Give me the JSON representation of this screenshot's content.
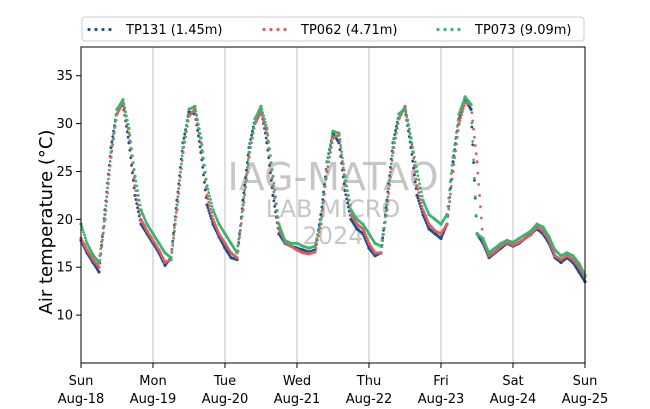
{
  "chart_data": {
    "type": "scatter",
    "ylabel": "Air temperature (°C)",
    "ylim": [
      5,
      38
    ],
    "xlim": [
      "2024-08-18 00:00",
      "2024-08-25 00:00"
    ],
    "yticks": [
      10,
      15,
      20,
      25,
      30,
      35
    ],
    "xticks": [
      {
        "x": "2024-08-18",
        "day": "Sun",
        "date": "Aug-18"
      },
      {
        "x": "2024-08-19",
        "day": "Mon",
        "date": "Aug-19"
      },
      {
        "x": "2024-08-20",
        "day": "Tue",
        "date": "Aug-20"
      },
      {
        "x": "2024-08-21",
        "day": "Wed",
        "date": "Aug-21"
      },
      {
        "x": "2024-08-22",
        "day": "Thu",
        "date": "Aug-22"
      },
      {
        "x": "2024-08-23",
        "day": "Fri",
        "date": "Aug-23"
      },
      {
        "x": "2024-08-24",
        "day": "Sat",
        "date": "Aug-24"
      },
      {
        "x": "2024-08-25",
        "day": "Sun",
        "date": "Aug-25"
      }
    ],
    "grid": "vertical gridlines at day ticks",
    "legend_position": "top, above plot",
    "watermark": [
      "IAG-MATAO",
      "LAB MICRO",
      "2024"
    ],
    "series": [
      {
        "name": "TP131 (1.45m)",
        "color": "#1f4e8c",
        "x": [
          "2024-08-18 00:00",
          "2024-08-18 02:00",
          "2024-08-18 04:00",
          "2024-08-18 06:00",
          "2024-08-18 08:00",
          "2024-08-18 10:00",
          "2024-08-18 12:00",
          "2024-08-18 14:00",
          "2024-08-18 16:00",
          "2024-08-18 18:00",
          "2024-08-18 20:00",
          "2024-08-18 22:00",
          "2024-08-19 00:00",
          "2024-08-19 02:00",
          "2024-08-19 04:00",
          "2024-08-19 06:00",
          "2024-08-19 08:00",
          "2024-08-19 10:00",
          "2024-08-19 12:00",
          "2024-08-19 14:00",
          "2024-08-19 16:00",
          "2024-08-19 18:00",
          "2024-08-19 20:00",
          "2024-08-19 22:00",
          "2024-08-20 00:00",
          "2024-08-20 02:00",
          "2024-08-20 04:00",
          "2024-08-20 06:00",
          "2024-08-20 08:00",
          "2024-08-20 10:00",
          "2024-08-20 12:00",
          "2024-08-20 14:00",
          "2024-08-20 16:00",
          "2024-08-20 18:00",
          "2024-08-20 20:00",
          "2024-08-20 22:00",
          "2024-08-21 00:00",
          "2024-08-21 02:00",
          "2024-08-21 04:00",
          "2024-08-21 06:00",
          "2024-08-21 08:00",
          "2024-08-21 10:00",
          "2024-08-21 12:00",
          "2024-08-21 14:00",
          "2024-08-21 16:00",
          "2024-08-21 18:00",
          "2024-08-21 20:00",
          "2024-08-21 22:00",
          "2024-08-22 00:00",
          "2024-08-22 02:00",
          "2024-08-22 04:00",
          "2024-08-22 06:00",
          "2024-08-22 08:00",
          "2024-08-22 10:00",
          "2024-08-22 12:00",
          "2024-08-22 14:00",
          "2024-08-22 16:00",
          "2024-08-22 18:00",
          "2024-08-22 20:00",
          "2024-08-22 22:00",
          "2024-08-23 00:00",
          "2024-08-23 02:00",
          "2024-08-23 04:00",
          "2024-08-23 06:00",
          "2024-08-23 08:00",
          "2024-08-23 10:00",
          "2024-08-23 12:00",
          "2024-08-23 14:00",
          "2024-08-23 16:00",
          "2024-08-23 18:00",
          "2024-08-23 20:00",
          "2024-08-23 22:00",
          "2024-08-24 00:00",
          "2024-08-24 02:00",
          "2024-08-24 04:00",
          "2024-08-24 06:00",
          "2024-08-24 08:00",
          "2024-08-24 10:00",
          "2024-08-24 12:00",
          "2024-08-24 14:00",
          "2024-08-24 16:00",
          "2024-08-24 18:00",
          "2024-08-24 20:00",
          "2024-08-24 22:00",
          "2024-08-25 00:00"
        ],
        "values": [
          17.8,
          16.5,
          15.5,
          14.5,
          21.0,
          27.5,
          31.5,
          32.0,
          28.0,
          22.5,
          19.5,
          18.5,
          17.5,
          16.5,
          15.2,
          16.0,
          22.0,
          28.0,
          31.2,
          31.0,
          27.0,
          21.5,
          19.5,
          18.2,
          17.0,
          16.0,
          15.8,
          22.0,
          27.5,
          30.5,
          31.5,
          28.0,
          22.5,
          18.5,
          17.5,
          17.2,
          17.0,
          16.8,
          16.6,
          16.8,
          20.5,
          26.0,
          29.0,
          28.0,
          23.0,
          20.0,
          19.0,
          18.5,
          17.0,
          16.2,
          16.5,
          22.0,
          28.0,
          31.0,
          31.5,
          27.5,
          22.5,
          20.5,
          19.0,
          18.5,
          18.0,
          19.5,
          26.0,
          30.5,
          32.5,
          31.5,
          18.5,
          17.5,
          16.0,
          16.5,
          17.0,
          17.5,
          17.2,
          17.5,
          18.0,
          18.5,
          19.0,
          18.5,
          17.5,
          16.0,
          15.5,
          16.0,
          15.5,
          14.5,
          13.5
        ]
      },
      {
        "name": "TP062 (4.71m)",
        "color": "#d9605f",
        "x": [
          "2024-08-18 00:00",
          "2024-08-18 02:00",
          "2024-08-18 04:00",
          "2024-08-18 06:00",
          "2024-08-18 08:00",
          "2024-08-18 10:00",
          "2024-08-18 12:00",
          "2024-08-18 14:00",
          "2024-08-18 16:00",
          "2024-08-18 18:00",
          "2024-08-18 20:00",
          "2024-08-18 22:00",
          "2024-08-19 00:00",
          "2024-08-19 02:00",
          "2024-08-19 04:00",
          "2024-08-19 06:00",
          "2024-08-19 08:00",
          "2024-08-19 10:00",
          "2024-08-19 12:00",
          "2024-08-19 14:00",
          "2024-08-19 16:00",
          "2024-08-19 18:00",
          "2024-08-19 20:00",
          "2024-08-19 22:00",
          "2024-08-20 00:00",
          "2024-08-20 02:00",
          "2024-08-20 04:00",
          "2024-08-20 06:00",
          "2024-08-20 08:00",
          "2024-08-20 10:00",
          "2024-08-20 12:00",
          "2024-08-20 14:00",
          "2024-08-20 16:00",
          "2024-08-20 18:00",
          "2024-08-20 20:00",
          "2024-08-20 22:00",
          "2024-08-21 00:00",
          "2024-08-21 02:00",
          "2024-08-21 04:00",
          "2024-08-21 06:00",
          "2024-08-21 08:00",
          "2024-08-21 10:00",
          "2024-08-21 12:00",
          "2024-08-21 14:00",
          "2024-08-21 16:00",
          "2024-08-21 18:00",
          "2024-08-21 20:00",
          "2024-08-21 22:00",
          "2024-08-22 00:00",
          "2024-08-22 02:00",
          "2024-08-22 04:00",
          "2024-08-22 06:00",
          "2024-08-22 08:00",
          "2024-08-22 10:00",
          "2024-08-22 12:00",
          "2024-08-22 14:00",
          "2024-08-22 16:00",
          "2024-08-22 18:00",
          "2024-08-22 20:00",
          "2024-08-22 22:00",
          "2024-08-23 00:00",
          "2024-08-23 02:00",
          "2024-08-23 04:00",
          "2024-08-23 06:00",
          "2024-08-23 08:00",
          "2024-08-23 10:00",
          "2024-08-23 12:00",
          "2024-08-23 14:00",
          "2024-08-23 16:00",
          "2024-08-23 18:00",
          "2024-08-23 20:00",
          "2024-08-23 22:00",
          "2024-08-24 00:00",
          "2024-08-24 02:00",
          "2024-08-24 04:00",
          "2024-08-24 06:00",
          "2024-08-24 08:00",
          "2024-08-24 10:00",
          "2024-08-24 12:00",
          "2024-08-24 14:00",
          "2024-08-24 16:00",
          "2024-08-24 18:00",
          "2024-08-24 20:00",
          "2024-08-24 22:00",
          "2024-08-25 00:00"
        ],
        "values": [
          18.0,
          16.8,
          15.8,
          15.0,
          20.0,
          26.5,
          31.0,
          32.2,
          29.0,
          23.5,
          20.0,
          18.8,
          17.8,
          16.8,
          15.5,
          15.8,
          21.0,
          27.0,
          30.8,
          31.5,
          28.0,
          22.5,
          20.0,
          18.5,
          17.5,
          16.5,
          16.0,
          21.0,
          26.5,
          30.0,
          31.2,
          29.0,
          23.5,
          19.0,
          17.6,
          17.2,
          16.8,
          16.5,
          16.4,
          16.6,
          19.5,
          25.0,
          28.5,
          28.8,
          24.0,
          20.5,
          19.5,
          19.0,
          17.5,
          16.5,
          16.5,
          21.0,
          27.0,
          30.5,
          31.8,
          28.5,
          23.5,
          21.0,
          19.5,
          18.8,
          18.5,
          19.5,
          25.0,
          30.0,
          32.2,
          32.0,
          26.0,
          17.8,
          16.2,
          16.6,
          17.2,
          17.6,
          17.3,
          17.6,
          18.0,
          18.4,
          19.2,
          18.8,
          17.8,
          16.2,
          15.8,
          16.2,
          15.8,
          15.0,
          14.0
        ]
      },
      {
        "name": "TP073 (9.09m)",
        "color": "#3cb371",
        "x": [
          "2024-08-18 00:00",
          "2024-08-18 02:00",
          "2024-08-18 04:00",
          "2024-08-18 06:00",
          "2024-08-18 08:00",
          "2024-08-18 10:00",
          "2024-08-18 12:00",
          "2024-08-18 14:00",
          "2024-08-18 16:00",
          "2024-08-18 18:00",
          "2024-08-18 20:00",
          "2024-08-18 22:00",
          "2024-08-19 00:00",
          "2024-08-19 02:00",
          "2024-08-19 04:00",
          "2024-08-19 06:00",
          "2024-08-19 08:00",
          "2024-08-19 10:00",
          "2024-08-19 12:00",
          "2024-08-19 14:00",
          "2024-08-19 16:00",
          "2024-08-19 18:00",
          "2024-08-19 20:00",
          "2024-08-19 22:00",
          "2024-08-20 00:00",
          "2024-08-20 02:00",
          "2024-08-20 04:00",
          "2024-08-20 06:00",
          "2024-08-20 08:00",
          "2024-08-20 10:00",
          "2024-08-20 12:00",
          "2024-08-20 14:00",
          "2024-08-20 16:00",
          "2024-08-20 18:00",
          "2024-08-20 20:00",
          "2024-08-20 22:00",
          "2024-08-21 00:00",
          "2024-08-21 02:00",
          "2024-08-21 04:00",
          "2024-08-21 06:00",
          "2024-08-21 08:00",
          "2024-08-21 10:00",
          "2024-08-21 12:00",
          "2024-08-21 14:00",
          "2024-08-21 16:00",
          "2024-08-21 18:00",
          "2024-08-21 20:00",
          "2024-08-21 22:00",
          "2024-08-22 00:00",
          "2024-08-22 02:00",
          "2024-08-22 04:00",
          "2024-08-22 06:00",
          "2024-08-22 08:00",
          "2024-08-22 10:00",
          "2024-08-22 12:00",
          "2024-08-22 14:00",
          "2024-08-22 16:00",
          "2024-08-22 18:00",
          "2024-08-22 20:00",
          "2024-08-22 22:00",
          "2024-08-23 00:00",
          "2024-08-23 02:00",
          "2024-08-23 04:00",
          "2024-08-23 06:00",
          "2024-08-23 08:00",
          "2024-08-23 10:00",
          "2024-08-23 12:00",
          "2024-08-23 14:00",
          "2024-08-23 16:00",
          "2024-08-23 18:00",
          "2024-08-23 20:00",
          "2024-08-23 22:00",
          "2024-08-24 00:00",
          "2024-08-24 02:00",
          "2024-08-24 04:00",
          "2024-08-24 06:00",
          "2024-08-24 08:00",
          "2024-08-24 10:00",
          "2024-08-24 12:00",
          "2024-08-24 14:00",
          "2024-08-24 16:00",
          "2024-08-24 18:00",
          "2024-08-24 20:00",
          "2024-08-24 22:00",
          "2024-08-25 00:00"
        ],
        "values": [
          19.5,
          17.5,
          16.3,
          15.5,
          20.5,
          27.0,
          31.5,
          32.5,
          29.5,
          24.5,
          21.0,
          19.5,
          18.5,
          17.5,
          16.5,
          16.0,
          21.5,
          27.5,
          31.5,
          31.8,
          28.5,
          23.5,
          21.0,
          19.5,
          18.5,
          17.5,
          16.5,
          21.5,
          27.0,
          30.5,
          31.8,
          29.5,
          24.5,
          19.5,
          17.8,
          17.5,
          17.5,
          17.2,
          17.0,
          17.2,
          20.0,
          26.0,
          29.2,
          29.0,
          24.5,
          21.0,
          20.0,
          19.5,
          18.5,
          17.5,
          17.2,
          21.5,
          27.5,
          31.0,
          31.6,
          28.5,
          25.0,
          22.0,
          20.5,
          20.0,
          19.5,
          20.5,
          26.5,
          31.0,
          32.8,
          32.0,
          18.5,
          18.0,
          16.5,
          17.0,
          17.5,
          17.8,
          17.6,
          18.0,
          18.4,
          18.8,
          19.5,
          19.2,
          18.2,
          16.8,
          16.2,
          16.5,
          16.2,
          15.4,
          14.2
        ]
      }
    ]
  }
}
